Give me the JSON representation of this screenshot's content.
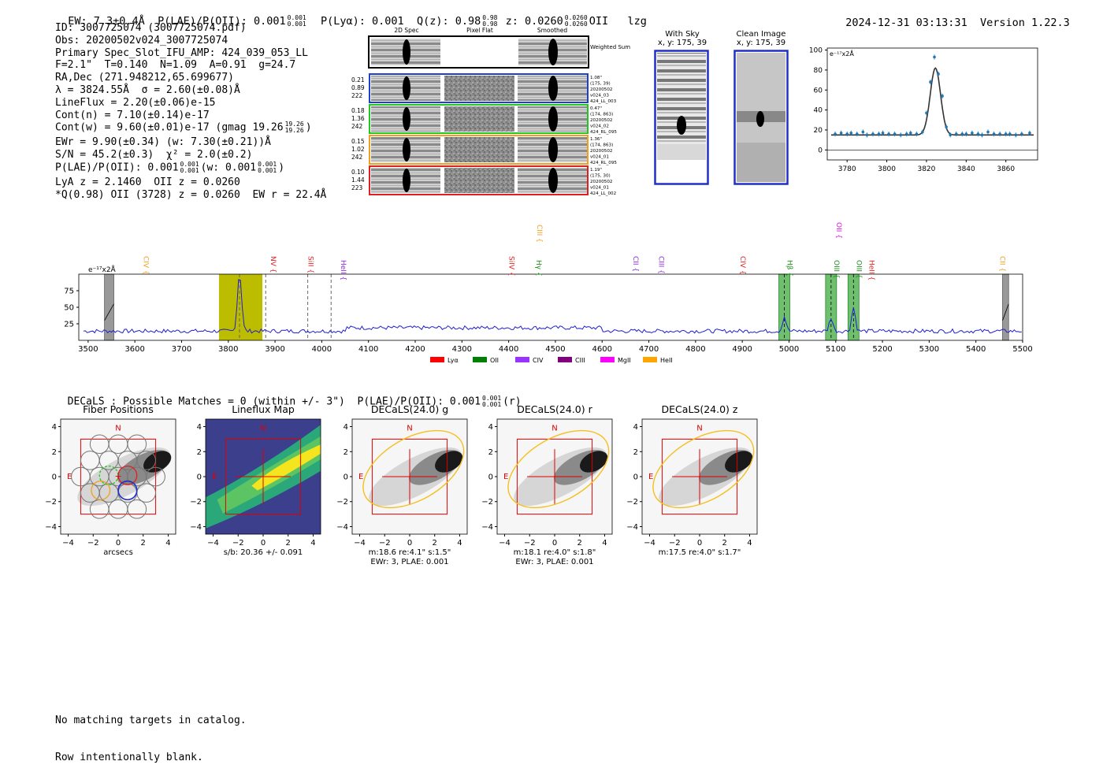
{
  "header": {
    "ew": "EW: 7.3±0.4Å",
    "plae_label": "P(LAE)/P(OII): 0.001",
    "plae_sup": "0.001",
    "plae_sub": "0.001",
    "plya": "P(Lyα): 0.001",
    "qz_label": "Q(z): 0.98",
    "qz_sup": "0.98",
    "qz_sub": "0.98",
    "z_label": "z: 0.0260",
    "z_sup": "0.0260",
    "z_sub": "0.0260",
    "oii": "OII",
    "tag": "lzg",
    "timestamp": "2024-12-31 03:13:31",
    "version": "Version 1.22.3"
  },
  "info": {
    "id": "ID: 3007725074 (3007725074.pdf)",
    "obs": "Obs: 20200502v024_3007725074",
    "primary": "Primary Spec_Slot_IFU_AMP: 424_039_053_LL",
    "fwhm": "F=2.1\"  T=0.140  N=1.09  A=0.91  g=24.7",
    "radec": "RA,Dec (271.948212,65.699677)",
    "lambda": "λ = 3824.55Å  σ = 2.60(±0.08)Å",
    "lineflux": "LineFlux = 2.20(±0.06)e-15",
    "contn": "Cont(n) = 7.10(±0.14)e-17",
    "contw": "Cont(w) = 9.60(±0.01)e-17 (gmag 19.26",
    "contw_sup": "19.26",
    "contw_sub": "19.26",
    "contw_end": ")",
    "ewr": "EWr = 9.90(±0.34) (w: 7.30(±0.21))Å",
    "sn": "S/N = 45.2(±0.3)  χ² = 2.0(±0.2)",
    "plae": "P(LAE)/P(OII): 0.001",
    "plae_sup": "0.001",
    "plae_sub": "0.001",
    "plae_w": "(w: 0.001",
    "plae_w_sup": "0.001",
    "plae_w_sub": "0.001",
    "plae_end": ")",
    "lya": "LyA z = 2.1460  OII z = 0.0260",
    "qline": "*Q(0.98) OII (3728) z = 0.0260  EW r = 22.4Å"
  },
  "cutouts": {
    "col_labels": [
      "2D Spec",
      "Pixel Flat",
      "Smoothed"
    ],
    "weighted_label": "Weighted Sum",
    "rows": [
      {
        "nums": [
          "0.21",
          "0.89",
          "222"
        ],
        "meta": [
          "1.08\"",
          "(175, 39)",
          "20200502",
          "v024_03",
          "424_LL_003"
        ],
        "color": "#1f3fd0"
      },
      {
        "nums": [
          "0.18",
          "1.36",
          "242"
        ],
        "meta": [
          "0.47\"",
          "(174, 863)",
          "20200502",
          "v024_02",
          "424_RL_095"
        ],
        "color": "#22c822"
      },
      {
        "nums": [
          "0.15",
          "1.02",
          "242"
        ],
        "meta": [
          "1.36\"",
          "(174, 863)",
          "20200502",
          "v024_01",
          "424_RL_095"
        ],
        "color": "#f0a020"
      },
      {
        "nums": [
          "0.10",
          "1.44",
          "223"
        ],
        "meta": [
          "1.19\"",
          "(175, 30)",
          "20200502",
          "v024_01",
          "424_LL_002"
        ],
        "color": "#e02020"
      }
    ]
  },
  "sky": {
    "with_sky": "With Sky",
    "with_sky_xy": "x, y: 175, 39",
    "clean": "Clean Image",
    "clean_xy": "x, y: 175, 39"
  },
  "line_fit": {
    "unit": "e⁻¹⁷x2Å",
    "yticks": [
      "0",
      "20",
      "40",
      "60",
      "80",
      "100"
    ],
    "xticks": [
      "3780",
      "3800",
      "3820",
      "3840",
      "3860"
    ]
  },
  "spectrum": {
    "unit": "e⁻¹⁷x2Å",
    "yticks": [
      "25",
      "50",
      "75"
    ],
    "xticks": [
      "3500",
      "3600",
      "3700",
      "3800",
      "3900",
      "4000",
      "4100",
      "4200",
      "4300",
      "4400",
      "4500",
      "4600",
      "4700",
      "4800",
      "4900",
      "5000",
      "5100",
      "5200",
      "5300",
      "5400",
      "5500"
    ],
    "line_labels": [
      {
        "name": "CIV",
        "color": "#f0a020",
        "wl": 3612
      },
      {
        "name": "NV",
        "color": "#e02020",
        "wl": 3885
      },
      {
        "name": "SiII",
        "color": "#e02020",
        "wl": 3965
      },
      {
        "name": "HeII",
        "color": "#8a2be2",
        "wl": 4035
      },
      {
        "name": "SiIV",
        "color": "#e02020",
        "wl": 4395
      },
      {
        "name": "CIII",
        "color": "#f0a020",
        "wl": 4455
      },
      {
        "name": "Hγ",
        "color": "#1a8a1a",
        "wl": 4453
      },
      {
        "name": "CII",
        "color": "#8a2be2",
        "wl": 4660
      },
      {
        "name": "CIII",
        "color": "#8a2be2",
        "wl": 4715
      },
      {
        "name": "CIV",
        "color": "#e02020",
        "wl": 4890
      },
      {
        "name": "Hβ",
        "color": "#1a8a1a",
        "wl": 4990
      },
      {
        "name": "OII",
        "color": "#e010e0",
        "wl": 5095
      },
      {
        "name": "OIII",
        "color": "#1a8a1a",
        "wl": 5090
      },
      {
        "name": "OIII",
        "color": "#1a8a1a",
        "wl": 5138
      },
      {
        "name": "HeII",
        "color": "#e02020",
        "wl": 5165
      },
      {
        "name": "CII",
        "color": "#f0a020",
        "wl": 5445
      }
    ],
    "legend": [
      {
        "name": "Lyα",
        "color": "#ff0000"
      },
      {
        "name": "OII",
        "color": "#008000"
      },
      {
        "name": "CIV",
        "color": "#9933ff"
      },
      {
        "name": "CIII",
        "color": "#800080"
      },
      {
        "name": "MgII",
        "color": "#ff00ff"
      },
      {
        "name": "HeII",
        "color": "#ffa500"
      }
    ]
  },
  "decals": {
    "header": "DECaLS : Possible Matches = 0 (within +/- 3\")  P(LAE)/P(OII): 0.001",
    "header_sup": "0.001",
    "header_sub": "0.001",
    "header_end": "(r)",
    "panels": [
      {
        "title": "Fiber Positions",
        "cap1": "arcsecs",
        "cap2": ""
      },
      {
        "title": "Lineflux Map",
        "cap1": "s/b: 20.36 +/- 0.091",
        "cap2": ""
      },
      {
        "title": "DECaLS(24.0) g",
        "cap1": "m:18.6  re:4.1\"  s:1.5\"",
        "cap2": "EWr: 3, PLAE: 0.001"
      },
      {
        "title": "DECaLS(24.0) r",
        "cap1": "m:18.1  re:4.0\"  s:1.8\"",
        "cap2": "EWr: 3, PLAE: 0.001"
      },
      {
        "title": "DECaLS(24.0) z",
        "cap1": "m:17.5  re:4.0\"  s:1.7\"",
        "cap2": ""
      }
    ],
    "axis_ticks": [
      "−4",
      "−2",
      "0",
      "2",
      "4"
    ],
    "compass_n": "N",
    "compass_e": "E"
  },
  "footer": {
    "line1": "No matching targets in catalog.",
    "line2": "Row intentionally blank."
  }
}
